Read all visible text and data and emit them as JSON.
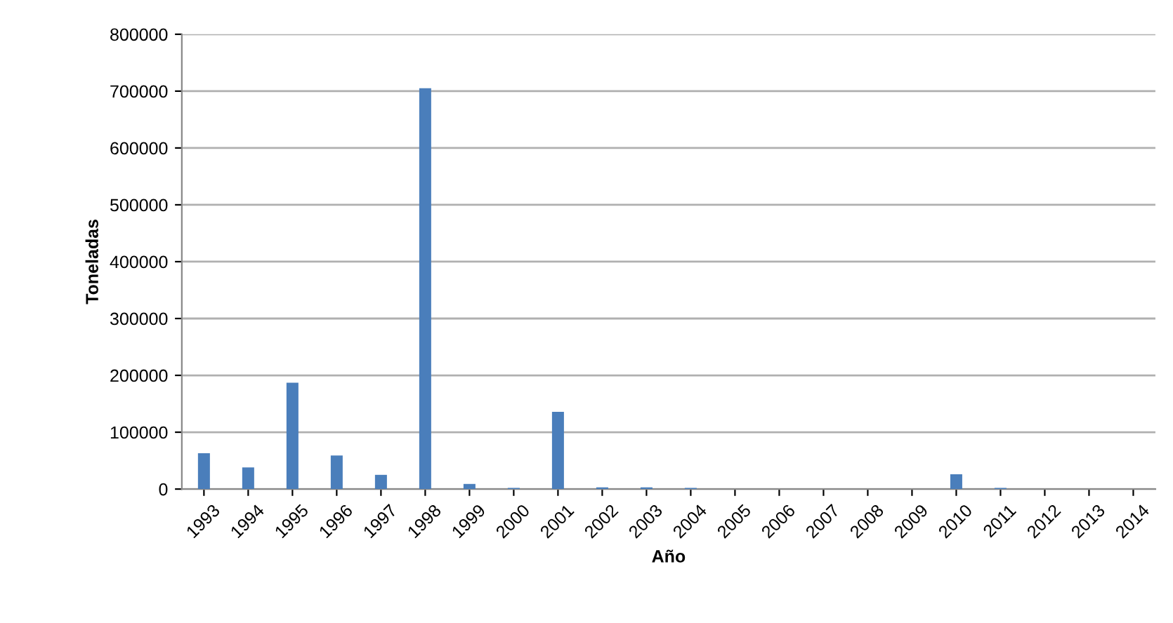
{
  "chart_data": {
    "type": "bar",
    "xlabel": "Año",
    "ylabel": "Toneladas",
    "categories": [
      "1993",
      "1994",
      "1995",
      "1996",
      "1997",
      "1998",
      "1999",
      "2000",
      "2001",
      "2002",
      "2003",
      "2004",
      "2005",
      "2006",
      "2007",
      "2008",
      "2009",
      "2010",
      "2011",
      "2012",
      "2013",
      "2014"
    ],
    "values": [
      63000,
      38000,
      187000,
      59000,
      25000,
      705000,
      9000,
      2000,
      136000,
      3000,
      3000,
      2000,
      0,
      0,
      0,
      0,
      0,
      26000,
      2000,
      0,
      0,
      0
    ],
    "color": "#4a7ebb",
    "ylim": [
      0,
      800000
    ],
    "yticks": [
      0,
      100000,
      200000,
      300000,
      400000,
      500000,
      600000,
      700000,
      800000
    ],
    "grid": "y"
  }
}
